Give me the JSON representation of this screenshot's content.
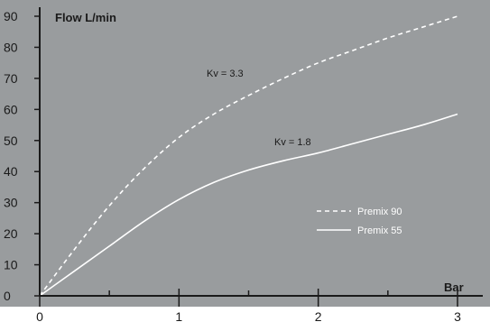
{
  "chart_data": {
    "type": "line",
    "title": "",
    "ylabel": "Flow L/min",
    "xlabel": "Bar",
    "xlim": [
      0,
      3
    ],
    "ylim": [
      0,
      90
    ],
    "x_ticks": [
      0,
      1,
      2,
      3
    ],
    "y_ticks": [
      0,
      10,
      20,
      30,
      40,
      50,
      60,
      70,
      80,
      90
    ],
    "grid": false,
    "legend_position": "right",
    "colors": {
      "plot_background": "#999c9e",
      "line": "#ffffff",
      "axis": "#1a1a1a"
    },
    "series": [
      {
        "name": "Premix 90",
        "style": "dashed",
        "annotation": "Kv = 3.3",
        "x": [
          0,
          0.25,
          0.5,
          0.75,
          1.0,
          1.25,
          1.5,
          1.75,
          2.0,
          2.25,
          2.5,
          2.75,
          3.0
        ],
        "y": [
          0,
          15,
          29,
          41,
          51,
          58.5,
          64.5,
          70,
          75,
          79,
          83,
          86.5,
          90
        ]
      },
      {
        "name": "Premix 55",
        "style": "solid",
        "annotation": "Kv = 1.8",
        "x": [
          0,
          0.25,
          0.5,
          0.75,
          1.0,
          1.25,
          1.5,
          1.75,
          2.0,
          2.25,
          2.5,
          2.75,
          3.0
        ],
        "y": [
          0,
          8,
          16,
          24,
          31,
          36.5,
          40.5,
          43.5,
          46,
          49,
          52,
          55,
          58.5
        ]
      }
    ]
  }
}
